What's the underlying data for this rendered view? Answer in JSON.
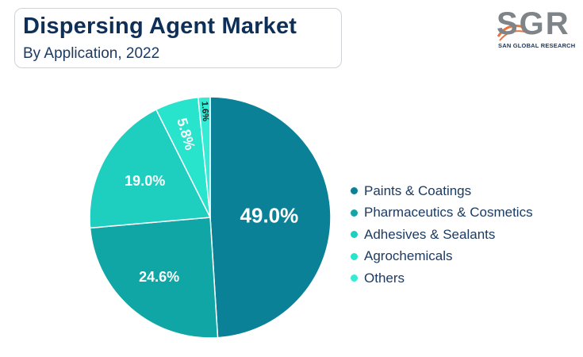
{
  "header": {
    "title": "Dispersing Agent Market",
    "subtitle": "By Application, 2022"
  },
  "logo": {
    "mark": "SGR",
    "text": "SAN GLOBAL RESEARCH"
  },
  "colors": {
    "title": "#0e2f57",
    "logo_accent": "#e8743b"
  },
  "chart_data": {
    "type": "pie",
    "title": "Dispersing Agent Market",
    "subtitle": "By Application, 2022",
    "start_angle_deg": 0,
    "direction": "clockwise",
    "legend_position": "right",
    "slices": [
      {
        "label": "Paints & Coatings",
        "value": 49.0,
        "display": "49.0%",
        "color": "#0a8197"
      },
      {
        "label": "Pharmaceutics & Cosmetics",
        "value": 24.6,
        "display": "24.6%",
        "color": "#10a6a6"
      },
      {
        "label": "Adhesives & Sealants",
        "value": 19.0,
        "display": "19.0%",
        "color": "#1ecfc0"
      },
      {
        "label": "Agrochemicals",
        "value": 5.8,
        "display": "5.8%",
        "color": "#28e4cd"
      },
      {
        "label": "Others",
        "value": 1.6,
        "display": "1.6%",
        "color": "#34ecd6"
      }
    ]
  }
}
